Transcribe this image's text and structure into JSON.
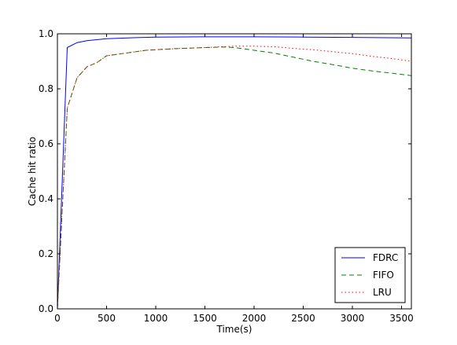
{
  "chart_data": {
    "type": "line",
    "title": "",
    "xlabel": "Time(s)",
    "ylabel": "Cache hit ratio",
    "xlim": [
      0,
      3600
    ],
    "ylim": [
      0.0,
      1.0
    ],
    "xticks": [
      0,
      500,
      1000,
      1500,
      2000,
      2500,
      3000,
      3500
    ],
    "yticks": [
      0.0,
      0.2,
      0.4,
      0.6,
      0.8,
      1.0
    ],
    "xtick_labels": [
      "0",
      "500",
      "1000",
      "1500",
      "2000",
      "2500",
      "3000",
      "3500"
    ],
    "ytick_labels": [
      "0.0",
      "0.2",
      "0.4",
      "0.6",
      "0.8",
      "1.0"
    ],
    "grid": false,
    "legend_position": "bottom-right",
    "series": [
      {
        "name": "FDRC",
        "color": "#0000ff",
        "style": "solid",
        "x": [
          0,
          100,
          200,
          300,
          500,
          800,
          1000,
          1500,
          2000,
          2500,
          3000,
          3600
        ],
        "y": [
          0.0,
          0.95,
          0.968,
          0.975,
          0.982,
          0.986,
          0.988,
          0.989,
          0.989,
          0.988,
          0.987,
          0.985
        ]
      },
      {
        "name": "FIFO",
        "color": "#008000",
        "style": "dashed",
        "x": [
          0,
          100,
          200,
          300,
          400,
          500,
          700,
          900,
          1000,
          1200,
          1500,
          1700,
          1800,
          2000,
          2200,
          2400,
          2600,
          2800,
          3000,
          3200,
          3400,
          3600
        ],
        "y": [
          0.0,
          0.73,
          0.84,
          0.88,
          0.895,
          0.92,
          0.93,
          0.94,
          0.942,
          0.946,
          0.95,
          0.952,
          0.95,
          0.94,
          0.93,
          0.915,
          0.9,
          0.888,
          0.875,
          0.865,
          0.857,
          0.848
        ]
      },
      {
        "name": "LRU",
        "color": "#ff0000",
        "style": "dotted",
        "x": [
          0,
          100,
          200,
          300,
          400,
          500,
          700,
          900,
          1000,
          1200,
          1500,
          1800,
          2000,
          2200,
          2400,
          2600,
          2800,
          3000,
          3200,
          3400,
          3600
        ],
        "y": [
          0.0,
          0.73,
          0.84,
          0.88,
          0.895,
          0.92,
          0.93,
          0.94,
          0.942,
          0.946,
          0.95,
          0.955,
          0.955,
          0.953,
          0.947,
          0.942,
          0.935,
          0.928,
          0.918,
          0.91,
          0.9
        ]
      }
    ]
  }
}
